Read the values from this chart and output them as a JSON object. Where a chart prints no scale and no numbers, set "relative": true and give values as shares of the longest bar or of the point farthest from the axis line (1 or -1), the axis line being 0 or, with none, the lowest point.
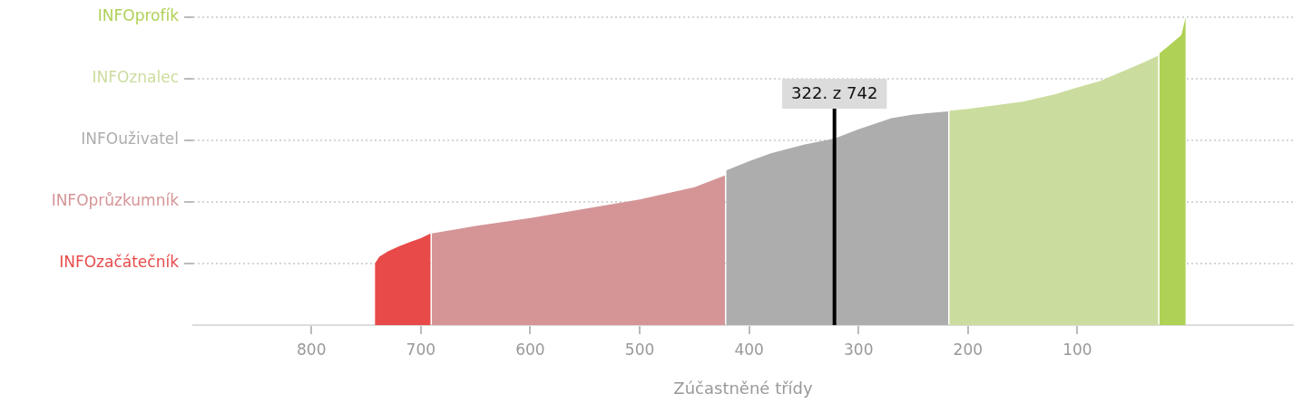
{
  "chart_data": {
    "type": "area",
    "relative": true,
    "xlabel": "Zúčastněné třídy",
    "xlim": [
      908,
      -97
    ],
    "xticks": [
      800,
      700,
      600,
      500,
      400,
      300,
      200,
      100
    ],
    "legend": false,
    "series": [
      {
        "color": "#e84a4a",
        "x": [
          742,
          738,
          730,
          720,
          710,
          700,
          691
        ],
        "values": [
          0.2,
          0.222,
          0.24,
          0.256,
          0.27,
          0.282,
          0.298
        ]
      },
      {
        "color": "#d59597",
        "x": [
          690,
          650,
          600,
          550,
          500,
          450,
          422
        ],
        "values": [
          0.298,
          0.322,
          0.348,
          0.378,
          0.408,
          0.448,
          0.486
        ]
      },
      {
        "color": "#adadad",
        "x": [
          421,
          400,
          380,
          350,
          322,
          300,
          270,
          250,
          218
        ],
        "values": [
          0.502,
          0.532,
          0.558,
          0.586,
          0.606,
          0.636,
          0.672,
          0.684,
          0.694
        ]
      },
      {
        "color": "#cbdd9e",
        "x": [
          217,
          200,
          150,
          120,
          100,
          80,
          60,
          40,
          26
        ],
        "values": [
          0.696,
          0.702,
          0.726,
          0.75,
          0.772,
          0.792,
          0.822,
          0.852,
          0.876
        ]
      },
      {
        "color": "#afd155",
        "x": [
          25,
          15,
          5,
          1
        ],
        "values": [
          0.882,
          0.912,
          0.942,
          1
        ]
      }
    ],
    "ref_lines": [
      {
        "axis": "y",
        "value": 0.2,
        "label": "INFOzačátečník",
        "line_style": "dotted"
      },
      {
        "axis": "y",
        "value": 0.4,
        "label": "INFOprůzkumník",
        "line_style": "dotted"
      },
      {
        "axis": "y",
        "value": 0.6,
        "label": "INFOuživatel",
        "line_style": "dotted"
      },
      {
        "axis": "y",
        "value": 0.8,
        "label": "INFOznalec",
        "line_style": "dotted"
      },
      {
        "axis": "y",
        "value": 1,
        "label": "INFOprofík",
        "line_style": "dotted"
      },
      {
        "axis": "x",
        "value": 322,
        "label": "322. z 742",
        "color": "#000000"
      }
    ]
  }
}
